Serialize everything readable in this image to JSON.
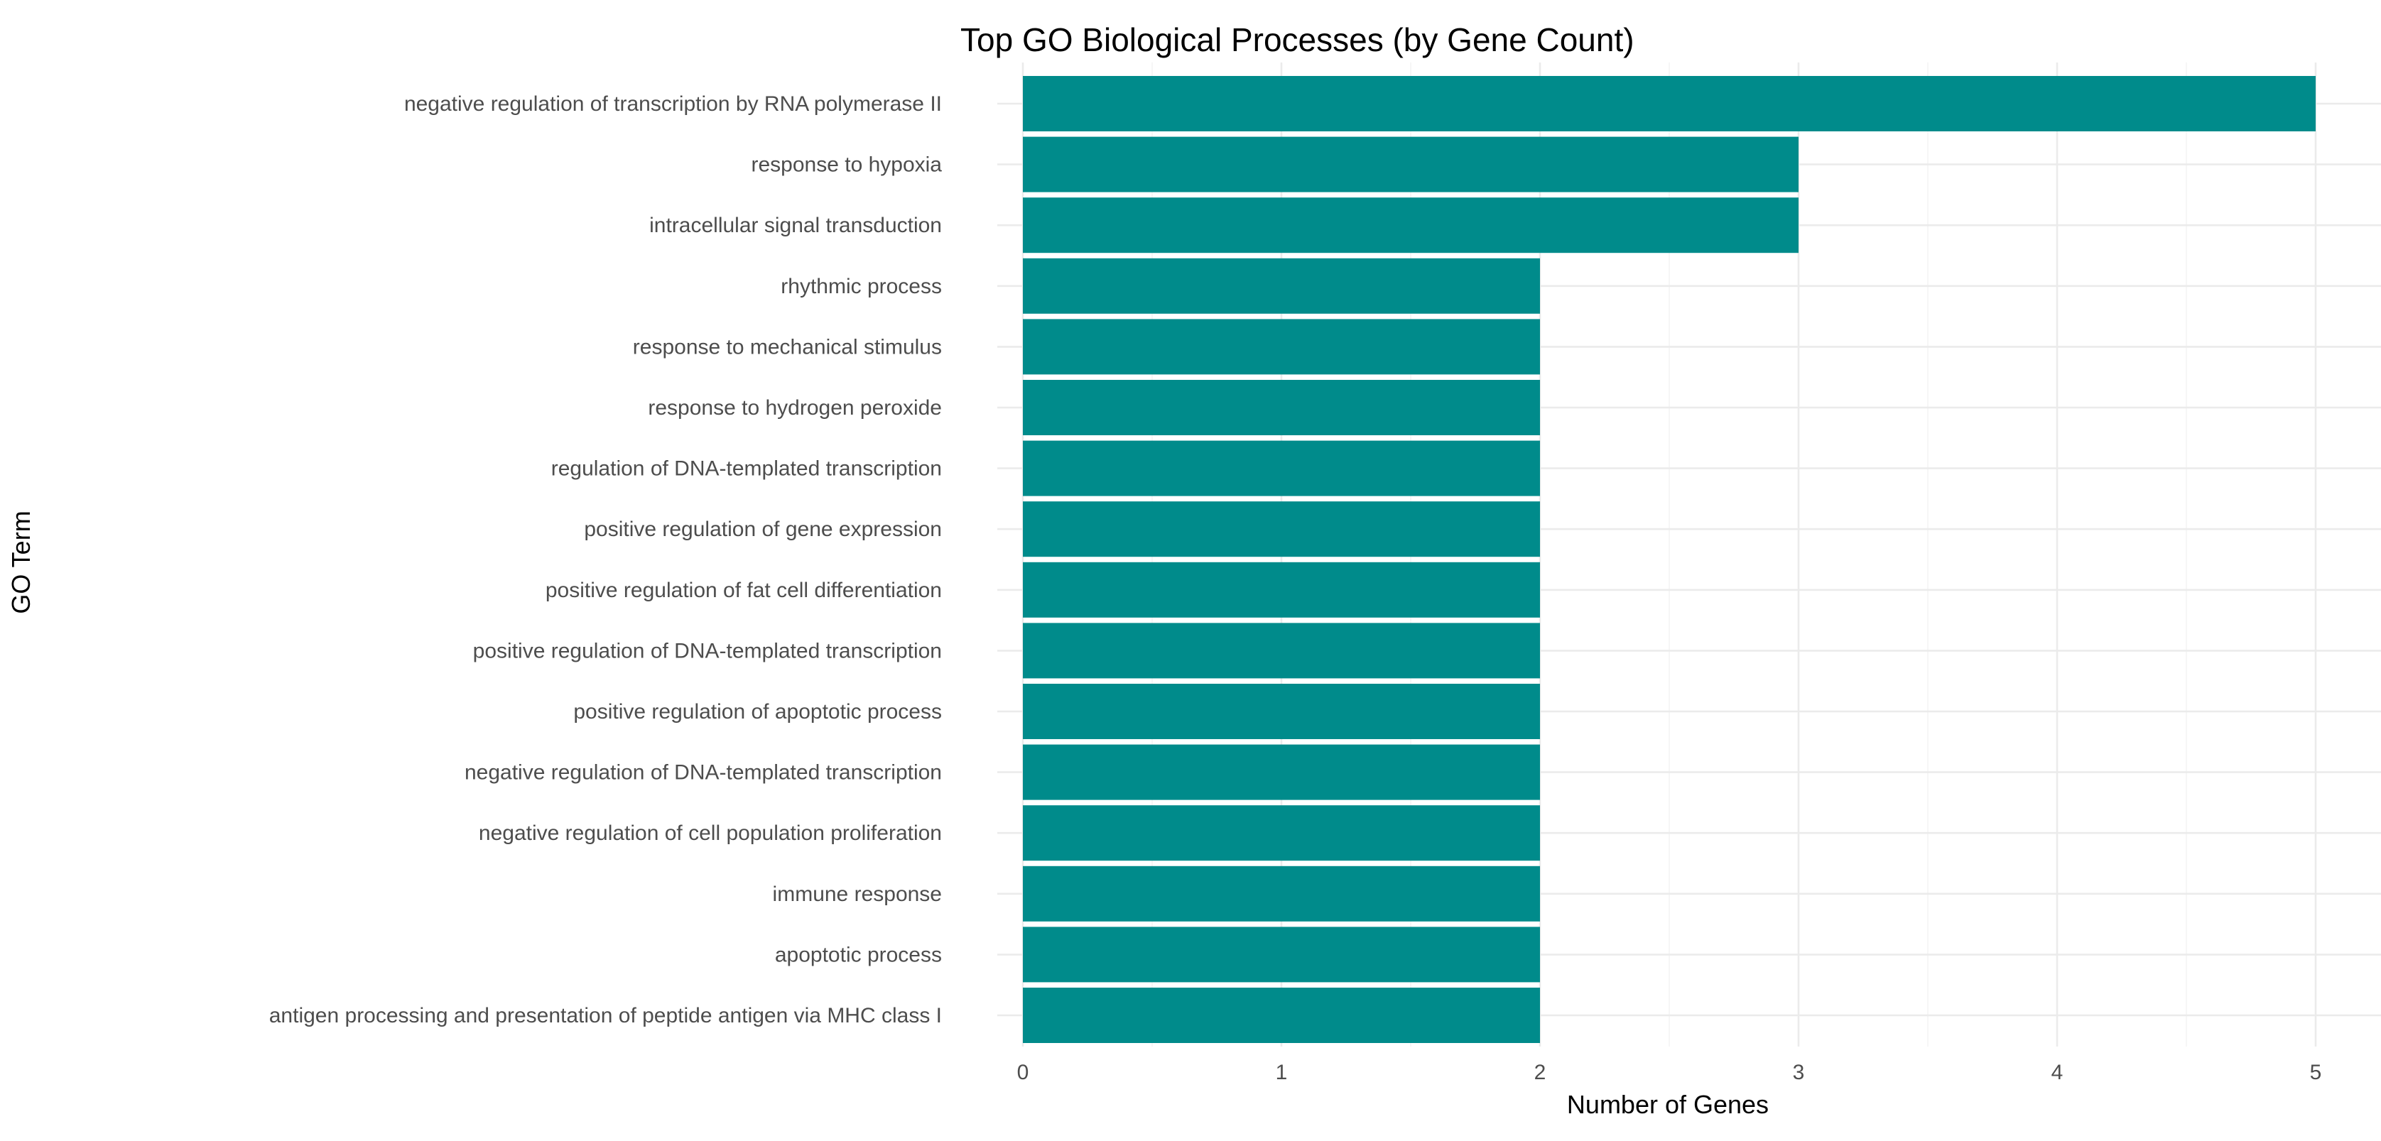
{
  "chart_data": {
    "type": "bar",
    "orientation": "horizontal",
    "title": "Top GO Biological Processes (by Gene Count)",
    "xlabel": "Number of Genes",
    "ylabel": "GO Term",
    "xlim": [
      0,
      5
    ],
    "xticks": [
      "0",
      "1",
      "2",
      "3",
      "4",
      "5"
    ],
    "grid": true,
    "legend": "none",
    "bar_color": "#008B8B",
    "categories": [
      "negative regulation of transcription by RNA polymerase II",
      "response to hypoxia",
      "intracellular signal transduction",
      "rhythmic process",
      "response to mechanical stimulus",
      "response to hydrogen peroxide",
      "regulation of DNA-templated transcription",
      "positive regulation of gene expression",
      "positive regulation of fat cell differentiation",
      "positive regulation of DNA-templated transcription",
      "positive regulation of apoptotic process",
      "negative regulation of DNA-templated transcription",
      "negative regulation of cell population proliferation",
      "immune response",
      "apoptotic process",
      "antigen processing and presentation of peptide antigen via MHC class I"
    ],
    "values": [
      5,
      3,
      3,
      2,
      2,
      2,
      2,
      2,
      2,
      2,
      2,
      2,
      2,
      2,
      2,
      2
    ]
  }
}
